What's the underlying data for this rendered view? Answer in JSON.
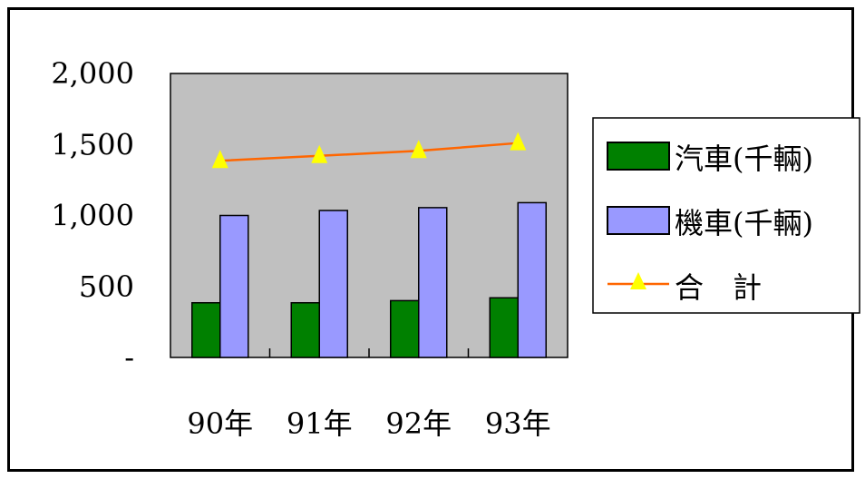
{
  "chart_data": {
    "type": "bar",
    "categories": [
      "90年",
      "91年",
      "92年",
      "93年"
    ],
    "series": [
      {
        "name": "汽車(千輛)",
        "type": "bar",
        "values": [
          385,
          385,
          400,
          420
        ],
        "color": "#008000"
      },
      {
        "name": "機車(千輛)",
        "type": "bar",
        "values": [
          1000,
          1035,
          1055,
          1090
        ],
        "color": "#9999ff"
      },
      {
        "name": "合　計",
        "type": "line",
        "values": [
          1385,
          1420,
          1455,
          1510
        ],
        "color": "#ff6600",
        "marker_color": "#ffff00",
        "marker": "triangle"
      }
    ],
    "y_ticks": [
      {
        "value": 0,
        "label": "-"
      },
      {
        "value": 500,
        "label": "500"
      },
      {
        "value": 1000,
        "label": "1,000"
      },
      {
        "value": 1500,
        "label": "1,500"
      },
      {
        "value": 2000,
        "label": "2,000"
      }
    ],
    "ylim": [
      0,
      2000
    ],
    "plot_background": "#c0c0c0",
    "legend_position": "right",
    "title": "",
    "xlabel": "",
    "ylabel": ""
  }
}
